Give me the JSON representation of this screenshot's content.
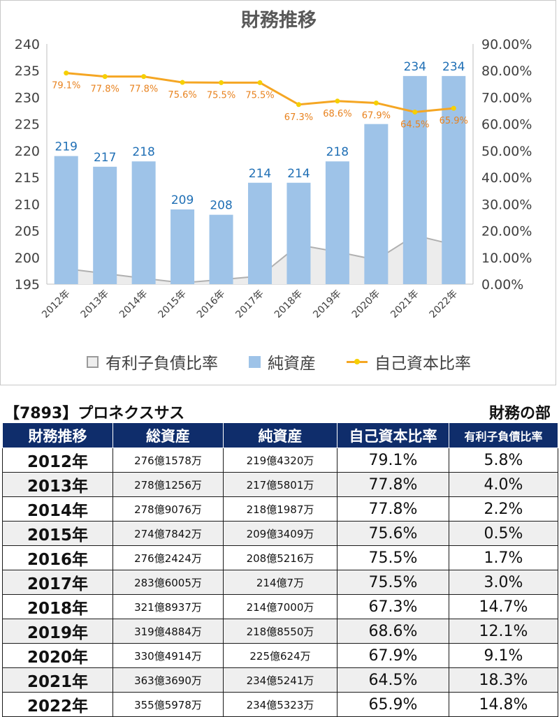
{
  "chart_data": {
    "type": "bar",
    "title": "財務推移",
    "categories": [
      "2012年",
      "2013年",
      "2014年",
      "2015年",
      "2016年",
      "2017年",
      "2018年",
      "2019年",
      "2020年",
      "2021年",
      "2022年"
    ],
    "left_axis": {
      "min": 195,
      "max": 240,
      "ticks": [
        "195",
        "200",
        "205",
        "210",
        "215",
        "220",
        "225",
        "230",
        "235",
        "240"
      ]
    },
    "right_axis": {
      "min": 0,
      "max": 90,
      "ticks": [
        "0.00%",
        "10.00%",
        "20.00%",
        "30.00%",
        "40.00%",
        "50.00%",
        "60.00%",
        "70.00%",
        "80.00%",
        "90.00%"
      ]
    },
    "series": [
      {
        "name": "有利子負債比率",
        "type": "area",
        "axis": "right",
        "values": [
          5.8,
          4.0,
          2.2,
          0.5,
          1.7,
          3.0,
          14.7,
          12.1,
          9.1,
          18.3,
          14.8
        ]
      },
      {
        "name": "純資産",
        "type": "bar",
        "axis": "left",
        "values": [
          219,
          217,
          218,
          209,
          208,
          214,
          214,
          218,
          225,
          234,
          234
        ],
        "labels": [
          "219",
          "217",
          "218",
          "209",
          "208",
          "214",
          "214",
          "218",
          "",
          "234",
          "234"
        ]
      },
      {
        "name": "自己資本比率",
        "type": "line",
        "axis": "right",
        "values": [
          79.1,
          77.8,
          77.8,
          75.6,
          75.5,
          75.5,
          67.3,
          68.6,
          67.9,
          64.5,
          65.9
        ],
        "labels": [
          "79.1%",
          "77.8%",
          "77.8%",
          "75.6%",
          "75.5%",
          "75.5%",
          "67.3%",
          "68.6%",
          "67.9%",
          "64.5%",
          "65.9%"
        ]
      }
    ],
    "legend_position": "bottom",
    "grid": false,
    "colors": {
      "bar": "#9ec3e8",
      "bar_label": "#1f6fb5",
      "line": "#f5a623",
      "marker": "#f6d000",
      "line_label": "#e8821e",
      "area_fill": "#ececec",
      "area_line": "#b0b0b0"
    }
  },
  "table": {
    "company": "【7893】プロネクスサス",
    "section": "財務の部",
    "headers": [
      "財務推移",
      "総資産",
      "純資産",
      "自己資本比率",
      "有利子負債比率"
    ],
    "rows": [
      [
        "2012年",
        "276億1578万",
        "219億4320万",
        "79.1%",
        "5.8%"
      ],
      [
        "2013年",
        "278億1256万",
        "217億5801万",
        "77.8%",
        "4.0%"
      ],
      [
        "2014年",
        "278億9076万",
        "218億1987万",
        "77.8%",
        "2.2%"
      ],
      [
        "2015年",
        "274億7842万",
        "209億3409万",
        "75.6%",
        "0.5%"
      ],
      [
        "2016年",
        "276億2424万",
        "208億5216万",
        "75.5%",
        "1.7%"
      ],
      [
        "2017年",
        "283億6005万",
        "214億7万",
        "75.5%",
        "3.0%"
      ],
      [
        "2018年",
        "321億8937万",
        "214億7000万",
        "67.3%",
        "14.7%"
      ],
      [
        "2019年",
        "319億4884万",
        "218億8550万",
        "68.6%",
        "12.1%"
      ],
      [
        "2020年",
        "330億4914万",
        "225億624万",
        "67.9%",
        "9.1%"
      ],
      [
        "2021年",
        "363億3690万",
        "234億5241万",
        "64.5%",
        "18.3%"
      ],
      [
        "2022年",
        "355億5978万",
        "234億5323万",
        "65.9%",
        "14.8%"
      ]
    ]
  }
}
